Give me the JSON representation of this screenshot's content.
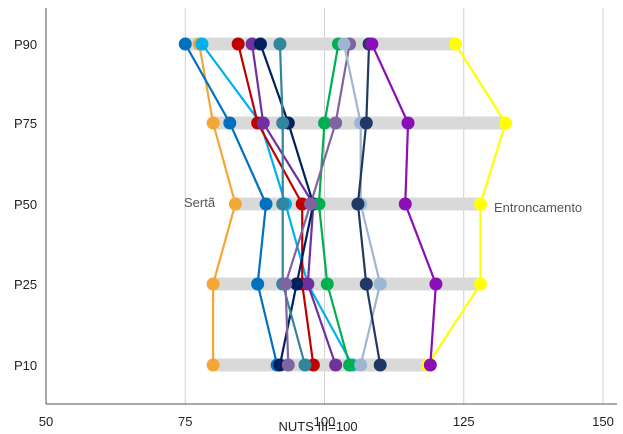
{
  "chart_data": {
    "type": "line",
    "xlabel": "NUTS III=100",
    "ylabel": "",
    "xlim": [
      50,
      150
    ],
    "x_ticks": [
      "50",
      "75",
      "100",
      "125",
      "150"
    ],
    "x_tick_values": [
      50,
      75,
      100,
      125,
      150
    ],
    "categories": [
      "P90",
      "P75",
      "P50",
      "P25",
      "P10"
    ],
    "grid": "vertical",
    "legend": "none",
    "range_bars": [
      {
        "category": "P90",
        "min": 75,
        "max": 123.5
      },
      {
        "category": "P75",
        "min": 80,
        "max": 132.5
      },
      {
        "category": "P50",
        "min": 84,
        "max": 128
      },
      {
        "category": "P25",
        "min": 80,
        "max": 128
      },
      {
        "category": "P10",
        "min": 80,
        "max": 119
      }
    ],
    "series": [
      {
        "name": "Sertã",
        "color": "#f4a636",
        "values": [
          77.5,
          80,
          84,
          80,
          80
        ]
      },
      {
        "name": "Entroncamento",
        "color": "#ffff00",
        "values": [
          123.5,
          132.5,
          128,
          128,
          118.5
        ]
      },
      {
        "color": "#0070c0",
        "values": [
          75,
          83,
          89.5,
          88,
          91.5
        ]
      },
      {
        "color": "#00b0f0",
        "values": [
          78,
          88.5,
          93,
          97,
          105
        ]
      },
      {
        "color": "#c00000",
        "values": [
          84.5,
          88,
          96,
          96,
          98
        ]
      },
      {
        "color": "#7030a0",
        "values": [
          87,
          89,
          98,
          97,
          102
        ]
      },
      {
        "color": "#002060",
        "values": [
          88.5,
          93.5,
          98,
          95,
          92
        ]
      },
      {
        "color": "#31859c",
        "values": [
          92,
          92.5,
          92.5,
          92.5,
          96.5
        ]
      },
      {
        "color": "#00b050",
        "values": [
          102.5,
          100,
          99,
          100.5,
          104.5
        ]
      },
      {
        "color": "#8064a2",
        "values": [
          104.5,
          102,
          97.5,
          93,
          93.5
        ]
      },
      {
        "color": "#9eb6d4",
        "values": [
          103.5,
          106.5,
          106.5,
          110,
          106.5
        ]
      },
      {
        "color": "#1f3864",
        "values": [
          108,
          107.5,
          106,
          107.5,
          110
        ]
      },
      {
        "color": "#8a0fb7",
        "values": [
          108.5,
          115,
          114.5,
          120,
          119
        ]
      }
    ],
    "annotations": [
      "Sertã",
      "Entroncamento"
    ]
  }
}
